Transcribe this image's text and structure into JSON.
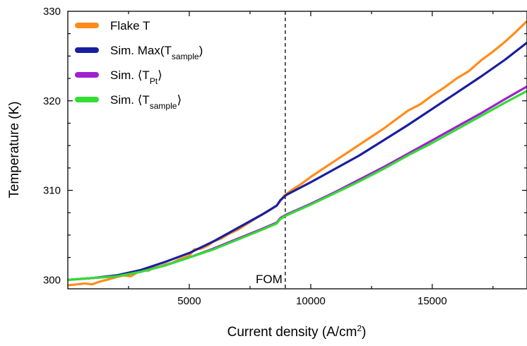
{
  "chart_data": {
    "type": "line",
    "xlabel": "Current density (A/cm",
    "xlabel_sup": "2",
    "xlabel_end": ")",
    "ylabel": "Temperature (K)",
    "xlim": [
      0,
      18900
    ],
    "ylim": [
      299,
      330
    ],
    "xticks": [
      5000,
      10000,
      15000
    ],
    "yticks": [
      300,
      310,
      320,
      330
    ],
    "grid": false,
    "legend_position": "top-left",
    "annotation": {
      "text": "FOM",
      "x": 8950
    },
    "series": [
      {
        "name": "Flake T",
        "legend_main": "Flake T",
        "legend_sub": "",
        "legend_suffix": "",
        "color": "#ff8c1a",
        "stroke_width": 3.2,
        "x": [
          0,
          400,
          700,
          1000,
          1300,
          1600,
          2000,
          2300,
          2600,
          2900,
          3100,
          3300,
          3500,
          3800,
          4000,
          4300,
          4600,
          4800,
          5000,
          5200,
          5500,
          5800,
          6000,
          6300,
          6600,
          7000,
          7400,
          7800,
          8200,
          8600,
          8900,
          9200,
          9600,
          10000,
          10500,
          11000,
          11500,
          12000,
          12500,
          13000,
          13500,
          14000,
          14500,
          15000,
          15500,
          16000,
          16500,
          17000,
          17500,
          18000,
          18400,
          18900
        ],
        "y": [
          299.4,
          299.5,
          299.6,
          299.5,
          299.8,
          300.0,
          300.3,
          300.5,
          300.4,
          300.9,
          301.2,
          301.0,
          301.3,
          301.5,
          301.7,
          301.9,
          302.3,
          302.5,
          302.7,
          303.4,
          303.5,
          303.9,
          304.3,
          304.6,
          305.1,
          305.6,
          306.3,
          307.0,
          307.6,
          308.3,
          309.4,
          310.0,
          310.7,
          311.5,
          312.4,
          313.3,
          314.2,
          315.1,
          316.0,
          316.9,
          317.9,
          318.9,
          319.6,
          320.6,
          321.5,
          322.5,
          323.3,
          324.5,
          325.5,
          326.6,
          327.6,
          328.9
        ]
      },
      {
        "name": "Sim. Max(T_sample)",
        "legend_main": "Sim. Max(T",
        "legend_sub": "sample",
        "legend_suffix": ")",
        "color": "#1a1f9e",
        "stroke_width": 3.2,
        "x": [
          0,
          1000,
          2000,
          3000,
          4000,
          5000,
          6000,
          7000,
          8000,
          8600,
          8750,
          9000,
          10000,
          11000,
          12000,
          13000,
          14000,
          15000,
          16000,
          17000,
          18000,
          18900
        ],
        "y": [
          300.0,
          300.2,
          300.5,
          301.1,
          302.0,
          303.0,
          304.3,
          305.8,
          307.3,
          308.3,
          308.9,
          309.5,
          310.9,
          312.4,
          313.9,
          315.6,
          317.3,
          319.1,
          320.9,
          322.7,
          324.6,
          326.5
        ]
      },
      {
        "name": "Sim. ⟨T_Pt⟩",
        "legend_main": "Sim. ⟨T",
        "legend_sub": "Pt",
        "legend_suffix": "⟩",
        "color": "#a020d0",
        "stroke_width": 3.2,
        "x": [
          0,
          1000,
          2000,
          3000,
          4000,
          5000,
          6000,
          7000,
          8000,
          8600,
          8750,
          9000,
          10000,
          11000,
          12000,
          13000,
          14000,
          15000,
          16000,
          17000,
          18000,
          18900
        ],
        "y": [
          300.0,
          300.2,
          300.4,
          300.9,
          301.6,
          302.5,
          303.5,
          304.6,
          305.7,
          306.4,
          306.9,
          307.3,
          308.5,
          309.8,
          311.2,
          312.6,
          314.1,
          315.6,
          317.1,
          318.6,
          320.2,
          321.6
        ]
      },
      {
        "name": "Sim. ⟨T_sample⟩",
        "legend_main": "Sim. ⟨T",
        "legend_sub": "sample",
        "legend_suffix": "⟩",
        "color": "#33dd33",
        "stroke_width": 3.2,
        "x": [
          0,
          1000,
          2000,
          3000,
          4000,
          5000,
          6000,
          7000,
          8000,
          8600,
          8750,
          9000,
          10000,
          11000,
          12000,
          13000,
          14000,
          15000,
          16000,
          17000,
          18000,
          18900
        ],
        "y": [
          300.0,
          300.2,
          300.4,
          300.9,
          301.6,
          302.5,
          303.4,
          304.5,
          305.6,
          306.3,
          306.8,
          307.2,
          308.4,
          309.7,
          311.0,
          312.4,
          313.9,
          315.3,
          316.8,
          318.3,
          319.8,
          321.1
        ]
      }
    ]
  }
}
